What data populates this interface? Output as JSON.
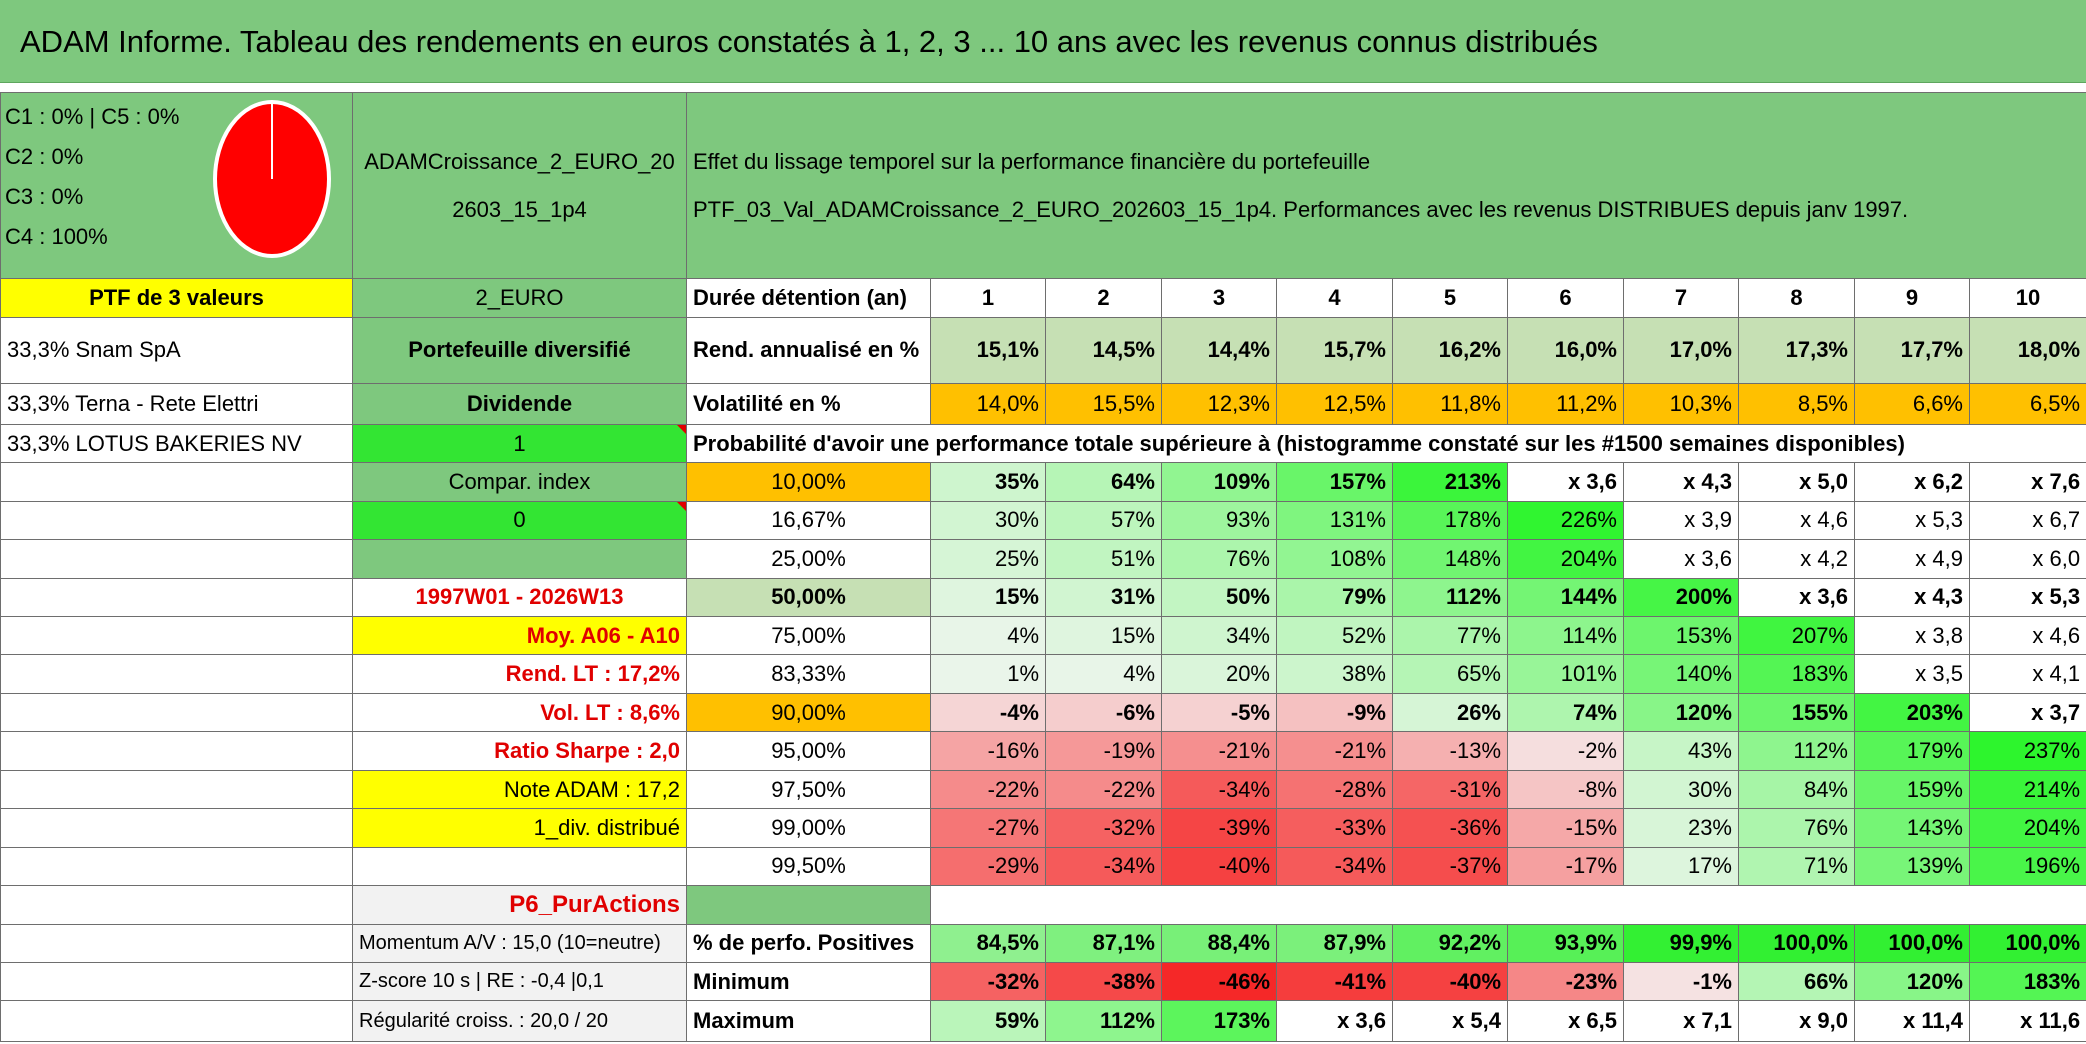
{
  "title": "ADAM Informe. Tableau des rendements en euros constatés à 1, 2, 3 ... 10 ans avec les revenus connus distribués",
  "composition": {
    "lines": [
      "C1 : 0% | C5 : 0%",
      "C2 : 0%",
      "C3 : 0%",
      "C4 : 100%"
    ],
    "pie_color": "#ff0000"
  },
  "portfolio_name": "ADAMCroissance_2_EURO_202603_15_1p4",
  "header": {
    "line1": "Effet du lissage temporel sur la performance financière du portefeuille",
    "line2": "PTF_03_Val_ADAMCroissance_2_EURO_202603_15_1p4. Performances avec les revenus DISTRIBUES depuis janv 1997."
  },
  "left": {
    "ptf_label": "PTF de 3 valeurs",
    "holdings": [
      "33,3% Snam SpA",
      "33,3% Terna - Rete Elettri",
      "33,3% LOTUS BAKERIES NV"
    ]
  },
  "mid": {
    "currency": "2_EURO",
    "diversified": "Portefeuille diversifié",
    "dividend": "Dividende",
    "dividend_value": "1",
    "compar_index": "Compar. index",
    "compar_value": "0",
    "period": "1997W01 - 2026W13",
    "moy": "Moy. A06 - A10",
    "rend_lt": "Rend. LT : 17,2%",
    "vol_lt": "Vol. LT : 8,6%",
    "sharpe": "Ratio Sharpe : 2,0",
    "note": "Note ADAM : 17,2",
    "div_distrib": "1_div. distribué",
    "category": "P6_PurActions",
    "momentum": "Momentum A/V : 15,0 (10=neutre)",
    "zscore": "Z-score 10 s | RE : -0,4 |0,1",
    "regularite": "Régularité croiss. : 20,0 / 20"
  },
  "table": {
    "duration_label": "Durée détention (an)",
    "years": [
      "1",
      "2",
      "3",
      "4",
      "5",
      "6",
      "7",
      "8",
      "9",
      "10"
    ],
    "rend_label": "Rend. annualisé en %",
    "rend": [
      "15,1%",
      "14,5%",
      "14,4%",
      "15,7%",
      "16,2%",
      "16,0%",
      "17,0%",
      "17,3%",
      "17,7%",
      "18,0%"
    ],
    "vol_label": "Volatilité en %",
    "vol": [
      "14,0%",
      "15,5%",
      "12,3%",
      "12,5%",
      "11,8%",
      "11,2%",
      "10,3%",
      "8,5%",
      "6,6%",
      "6,5%"
    ],
    "proba_label": "Probabilité d'avoir une performance totale supérieure à (histogramme constaté sur les #1500 semaines disponibles)",
    "prob_rows": [
      {
        "p": "10,00%",
        "vals": [
          "35%",
          "64%",
          "109%",
          "157%",
          "213%",
          "x 3,6",
          "x 4,3",
          "x 5,0",
          "x 6,2",
          "x 7,6"
        ]
      },
      {
        "p": "16,67%",
        "vals": [
          "30%",
          "57%",
          "93%",
          "131%",
          "178%",
          "226%",
          "x 3,9",
          "x 4,6",
          "x 5,3",
          "x 6,7"
        ]
      },
      {
        "p": "25,00%",
        "vals": [
          "25%",
          "51%",
          "76%",
          "108%",
          "148%",
          "204%",
          "x 3,6",
          "x 4,2",
          "x 4,9",
          "x 6,0"
        ]
      },
      {
        "p": "50,00%",
        "vals": [
          "15%",
          "31%",
          "50%",
          "79%",
          "112%",
          "144%",
          "200%",
          "x 3,6",
          "x 4,3",
          "x 5,3"
        ]
      },
      {
        "p": "75,00%",
        "vals": [
          "4%",
          "15%",
          "34%",
          "52%",
          "77%",
          "114%",
          "153%",
          "207%",
          "x 3,8",
          "x 4,6"
        ]
      },
      {
        "p": "83,33%",
        "vals": [
          "1%",
          "4%",
          "20%",
          "38%",
          "65%",
          "101%",
          "140%",
          "183%",
          "x 3,5",
          "x 4,1"
        ]
      },
      {
        "p": "90,00%",
        "vals": [
          "-4%",
          "-6%",
          "-5%",
          "-9%",
          "26%",
          "74%",
          "120%",
          "155%",
          "203%",
          "x 3,7"
        ]
      },
      {
        "p": "95,00%",
        "vals": [
          "-16%",
          "-19%",
          "-21%",
          "-21%",
          "-13%",
          "-2%",
          "43%",
          "112%",
          "179%",
          "237%"
        ]
      },
      {
        "p": "97,50%",
        "vals": [
          "-22%",
          "-22%",
          "-34%",
          "-28%",
          "-31%",
          "-8%",
          "30%",
          "84%",
          "159%",
          "214%"
        ]
      },
      {
        "p": "99,00%",
        "vals": [
          "-27%",
          "-32%",
          "-39%",
          "-33%",
          "-36%",
          "-15%",
          "23%",
          "76%",
          "143%",
          "204%"
        ]
      },
      {
        "p": "99,50%",
        "vals": [
          "-29%",
          "-34%",
          "-40%",
          "-34%",
          "-37%",
          "-17%",
          "17%",
          "71%",
          "139%",
          "196%"
        ]
      }
    ],
    "pos_label": "% de perfo. Positives",
    "pos": [
      "84,5%",
      "87,1%",
      "88,4%",
      "87,9%",
      "92,2%",
      "93,9%",
      "99,9%",
      "100,0%",
      "100,0%",
      "100,0%"
    ],
    "min_label": "Minimum",
    "min": [
      "-32%",
      "-38%",
      "-46%",
      "-41%",
      "-40%",
      "-23%",
      "-1%",
      "66%",
      "120%",
      "183%"
    ],
    "max_label": "Maximum",
    "max": [
      "59%",
      "112%",
      "173%",
      "x 3,6",
      "x 5,4",
      "x 6,5",
      "x 7,1",
      "x 9,0",
      "x 11,4",
      "x 11,6"
    ]
  },
  "colors": {
    "header_green": "#7ec87e",
    "light_green": "#c6e0b4",
    "bright_green": "#33e533",
    "yellow": "#ffff00",
    "orange": "#ffc000",
    "red_text": "#e00000"
  }
}
